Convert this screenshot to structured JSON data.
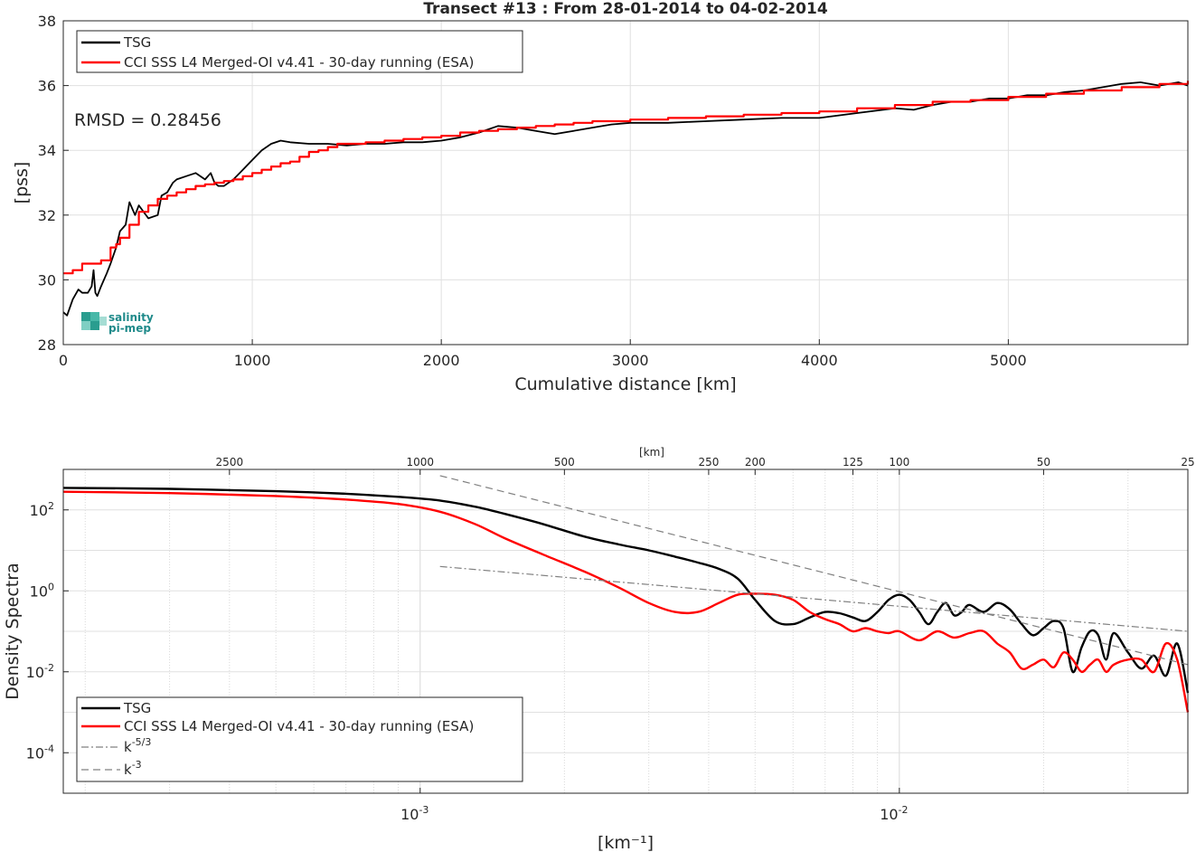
{
  "chart_data": [
    {
      "type": "line",
      "title": "Transect #13 : From 28-01-2014 to 04-02-2014",
      "xlabel": "Cumulative distance [km]",
      "ylabel": "[pss]",
      "xlim": [
        0,
        5950
      ],
      "ylim": [
        28,
        38
      ],
      "xticks": [
        "0",
        "1000",
        "2000",
        "3000",
        "4000",
        "5000"
      ],
      "yticks": [
        "28",
        "30",
        "32",
        "34",
        "36",
        "38"
      ],
      "grid": true,
      "legend_position": "top-left",
      "annotation": "RMSD = 0.28456",
      "logo": [
        "salinity",
        "pi-mep"
      ],
      "series": [
        {
          "name": "TSG",
          "color": "#000000",
          "x": [
            0,
            20,
            50,
            80,
            100,
            130,
            150,
            160,
            170,
            180,
            200,
            230,
            250,
            280,
            300,
            330,
            350,
            380,
            400,
            450,
            500,
            520,
            550,
            580,
            600,
            650,
            700,
            750,
            780,
            800,
            820,
            850,
            900,
            950,
            1000,
            1050,
            1100,
            1150,
            1200,
            1300,
            1400,
            1500,
            1600,
            1700,
            1800,
            1900,
            2000,
            2100,
            2200,
            2300,
            2400,
            2500,
            2600,
            2700,
            2800,
            2900,
            3000,
            3200,
            3400,
            3600,
            3800,
            4000,
            4200,
            4400,
            4500,
            4600,
            4700,
            4800,
            4900,
            5000,
            5100,
            5200,
            5300,
            5400,
            5500,
            5600,
            5700,
            5800,
            5900,
            5950
          ],
          "y": [
            29.0,
            28.9,
            29.4,
            29.7,
            29.6,
            29.6,
            29.8,
            30.3,
            29.6,
            29.5,
            29.8,
            30.2,
            30.5,
            31.0,
            31.5,
            31.7,
            32.4,
            32.0,
            32.3,
            31.9,
            32.0,
            32.6,
            32.7,
            33.0,
            33.1,
            33.2,
            33.3,
            33.1,
            33.3,
            33.0,
            32.9,
            32.9,
            33.1,
            33.4,
            33.7,
            34.0,
            34.2,
            34.3,
            34.25,
            34.2,
            34.2,
            34.15,
            34.2,
            34.2,
            34.25,
            34.25,
            34.3,
            34.4,
            34.55,
            34.75,
            34.7,
            34.6,
            34.5,
            34.6,
            34.7,
            34.8,
            34.85,
            34.85,
            34.9,
            34.95,
            35.0,
            35.0,
            35.15,
            35.3,
            35.25,
            35.4,
            35.5,
            35.5,
            35.6,
            35.6,
            35.7,
            35.7,
            35.8,
            35.85,
            35.95,
            36.05,
            36.1,
            36.0,
            36.1,
            36.0
          ]
        },
        {
          "name": "CCI SSS L4 Merged-OI v4.41 - 30-day running (ESA)",
          "color": "#ff0000",
          "x": [
            0,
            50,
            100,
            150,
            200,
            250,
            280,
            300,
            350,
            400,
            450,
            500,
            550,
            600,
            650,
            700,
            750,
            800,
            850,
            900,
            950,
            1000,
            1050,
            1100,
            1150,
            1200,
            1250,
            1300,
            1350,
            1400,
            1450,
            1500,
            1600,
            1700,
            1800,
            1900,
            2000,
            2100,
            2200,
            2300,
            2400,
            2500,
            2600,
            2700,
            2800,
            2900,
            3000,
            3200,
            3400,
            3600,
            3800,
            4000,
            4200,
            4400,
            4600,
            4800,
            5000,
            5200,
            5400,
            5600,
            5800,
            5950
          ],
          "y": [
            30.2,
            30.3,
            30.5,
            30.5,
            30.6,
            31.0,
            31.1,
            31.3,
            31.7,
            32.1,
            32.3,
            32.5,
            32.6,
            32.7,
            32.8,
            32.9,
            32.95,
            33.0,
            33.05,
            33.1,
            33.2,
            33.3,
            33.4,
            33.5,
            33.6,
            33.65,
            33.8,
            33.95,
            34.0,
            34.1,
            34.2,
            34.2,
            34.25,
            34.3,
            34.35,
            34.4,
            34.45,
            34.55,
            34.6,
            34.65,
            34.7,
            34.75,
            34.8,
            34.85,
            34.9,
            34.9,
            34.95,
            35.0,
            35.05,
            35.1,
            35.15,
            35.2,
            35.3,
            35.4,
            35.5,
            35.55,
            35.65,
            35.75,
            35.85,
            35.95,
            36.05,
            36.15
          ]
        }
      ]
    },
    {
      "type": "line",
      "xlabel": "[km⁻¹]",
      "ylabel": "Density Spectra",
      "x_scale": "log",
      "y_scale": "log",
      "xlim": [
        0.00018,
        0.04
      ],
      "ylim": [
        1e-05,
        1000
      ],
      "xticks": [
        0.001,
        0.01
      ],
      "xtick_labels": [
        "10",
        "10"
      ],
      "xtick_exponents": [
        "-3",
        "-2"
      ],
      "yticks": [
        0.0001,
        0.01,
        1,
        100
      ],
      "ytick_labels": [
        "10",
        "10",
        "10",
        "10"
      ],
      "ytick_exponents": [
        "-4",
        "-2",
        "0",
        "2"
      ],
      "top_axis_label": "[km]",
      "top_axis_ticks_km": [
        2500,
        1000,
        500,
        250,
        200,
        125,
        100,
        50,
        25
      ],
      "top_axis_tick_labels": [
        "2500",
        "1000",
        "500",
        "250",
        "200",
        "125",
        "100",
        "50",
        "25"
      ],
      "grid": true,
      "legend_position": "bottom-left",
      "series": [
        {
          "name": "TSG",
          "color": "#000000",
          "x": [
            0.00018,
            0.0003,
            0.0005,
            0.0007,
            0.0009,
            0.0011,
            0.0013,
            0.0015,
            0.0018,
            0.0022,
            0.0026,
            0.003,
            0.0034,
            0.0038,
            0.0042,
            0.0046,
            0.005,
            0.0055,
            0.006,
            0.0065,
            0.007,
            0.0075,
            0.008,
            0.0085,
            0.009,
            0.0095,
            0.01,
            0.0105,
            0.011,
            0.0115,
            0.012,
            0.0125,
            0.013,
            0.0135,
            0.014,
            0.015,
            0.016,
            0.017,
            0.018,
            0.019,
            0.02,
            0.021,
            0.022,
            0.023,
            0.024,
            0.025,
            0.026,
            0.027,
            0.028,
            0.03,
            0.032,
            0.034,
            0.036,
            0.038,
            0.04
          ],
          "y": [
            350,
            330,
            290,
            250,
            210,
            170,
            120,
            80,
            45,
            22,
            14,
            10,
            7,
            5,
            3.5,
            2,
            0.6,
            0.18,
            0.15,
            0.22,
            0.3,
            0.28,
            0.22,
            0.18,
            0.3,
            0.6,
            0.8,
            0.6,
            0.3,
            0.15,
            0.3,
            0.5,
            0.25,
            0.3,
            0.45,
            0.3,
            0.5,
            0.35,
            0.15,
            0.08,
            0.12,
            0.18,
            0.12,
            0.01,
            0.04,
            0.1,
            0.08,
            0.02,
            0.09,
            0.03,
            0.012,
            0.025,
            0.008,
            0.05,
            0.003
          ]
        },
        {
          "name": "CCI SSS L4 Merged-OI v4.41 - 30-day running (ESA)",
          "color": "#ff0000",
          "x": [
            0.00018,
            0.0003,
            0.0005,
            0.0007,
            0.0009,
            0.0011,
            0.0013,
            0.0015,
            0.0018,
            0.0022,
            0.0026,
            0.003,
            0.0034,
            0.0038,
            0.0042,
            0.0046,
            0.005,
            0.0055,
            0.006,
            0.0065,
            0.007,
            0.0075,
            0.008,
            0.0085,
            0.009,
            0.0095,
            0.01,
            0.011,
            0.012,
            0.013,
            0.014,
            0.015,
            0.016,
            0.017,
            0.018,
            0.019,
            0.02,
            0.021,
            0.022,
            0.023,
            0.024,
            0.025,
            0.026,
            0.027,
            0.028,
            0.03,
            0.032,
            0.034,
            0.036,
            0.038,
            0.04
          ],
          "y": [
            280,
            260,
            220,
            180,
            140,
            90,
            45,
            20,
            8,
            3,
            1.2,
            0.5,
            0.3,
            0.3,
            0.5,
            0.8,
            0.85,
            0.8,
            0.6,
            0.3,
            0.2,
            0.15,
            0.1,
            0.12,
            0.1,
            0.09,
            0.1,
            0.06,
            0.1,
            0.07,
            0.09,
            0.1,
            0.05,
            0.03,
            0.012,
            0.015,
            0.02,
            0.013,
            0.03,
            0.02,
            0.01,
            0.015,
            0.02,
            0.01,
            0.015,
            0.02,
            0.02,
            0.01,
            0.05,
            0.02,
            0.001
          ]
        },
        {
          "name": "k⁻⁵ᐟ³",
          "color": "#808080",
          "style": "dashdot",
          "x": [
            0.0011,
            0.04
          ],
          "y": [
            4,
            0.1
          ]
        },
        {
          "name": "k⁻³",
          "color": "#808080",
          "style": "dashed",
          "x": [
            0.0011,
            0.04
          ],
          "y": [
            700,
            0.015
          ]
        }
      ],
      "legend_entries": [
        {
          "base": "TSG",
          "exp": ""
        },
        {
          "base": "CCI SSS L4 Merged-OI v4.41 - 30-day running (ESA)",
          "exp": ""
        },
        {
          "base": "k",
          "exp": "-5/3"
        },
        {
          "base": "k",
          "exp": "-3"
        }
      ]
    }
  ]
}
